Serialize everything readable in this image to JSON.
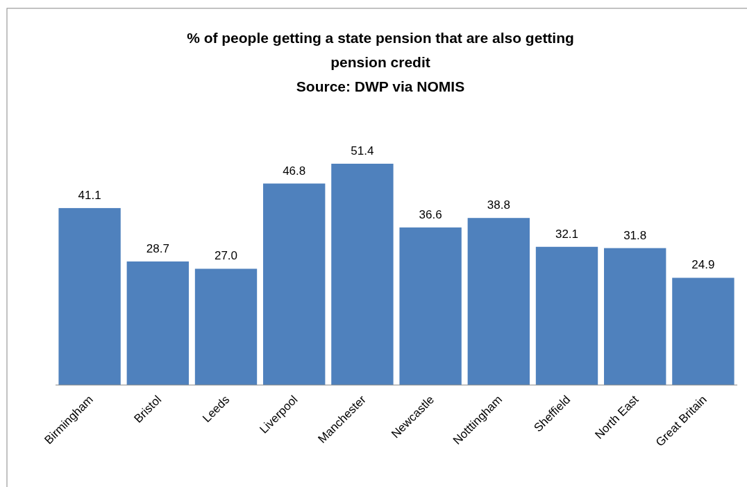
{
  "chart_data": {
    "type": "bar",
    "title": "% of people getting a state pension that are also getting pension credit",
    "annotations": [
      "Source: DWP via NOMIS"
    ],
    "categories": [
      "Birmingham",
      "Bristol",
      "Leeds",
      "Liverpool",
      "Manchester",
      "Newcastle",
      "Notttingham",
      "Sheffield",
      "North East",
      "Great Britain"
    ],
    "values": [
      41.1,
      28.7,
      27.0,
      46.8,
      51.4,
      36.6,
      38.8,
      32.1,
      31.8,
      24.9
    ],
    "value_labels": [
      "41.1",
      "28.7",
      "27.0",
      "46.8",
      "51.4",
      "36.6",
      "38.8",
      "32.1",
      "31.8",
      "24.9"
    ],
    "color": "#4f81bd"
  }
}
